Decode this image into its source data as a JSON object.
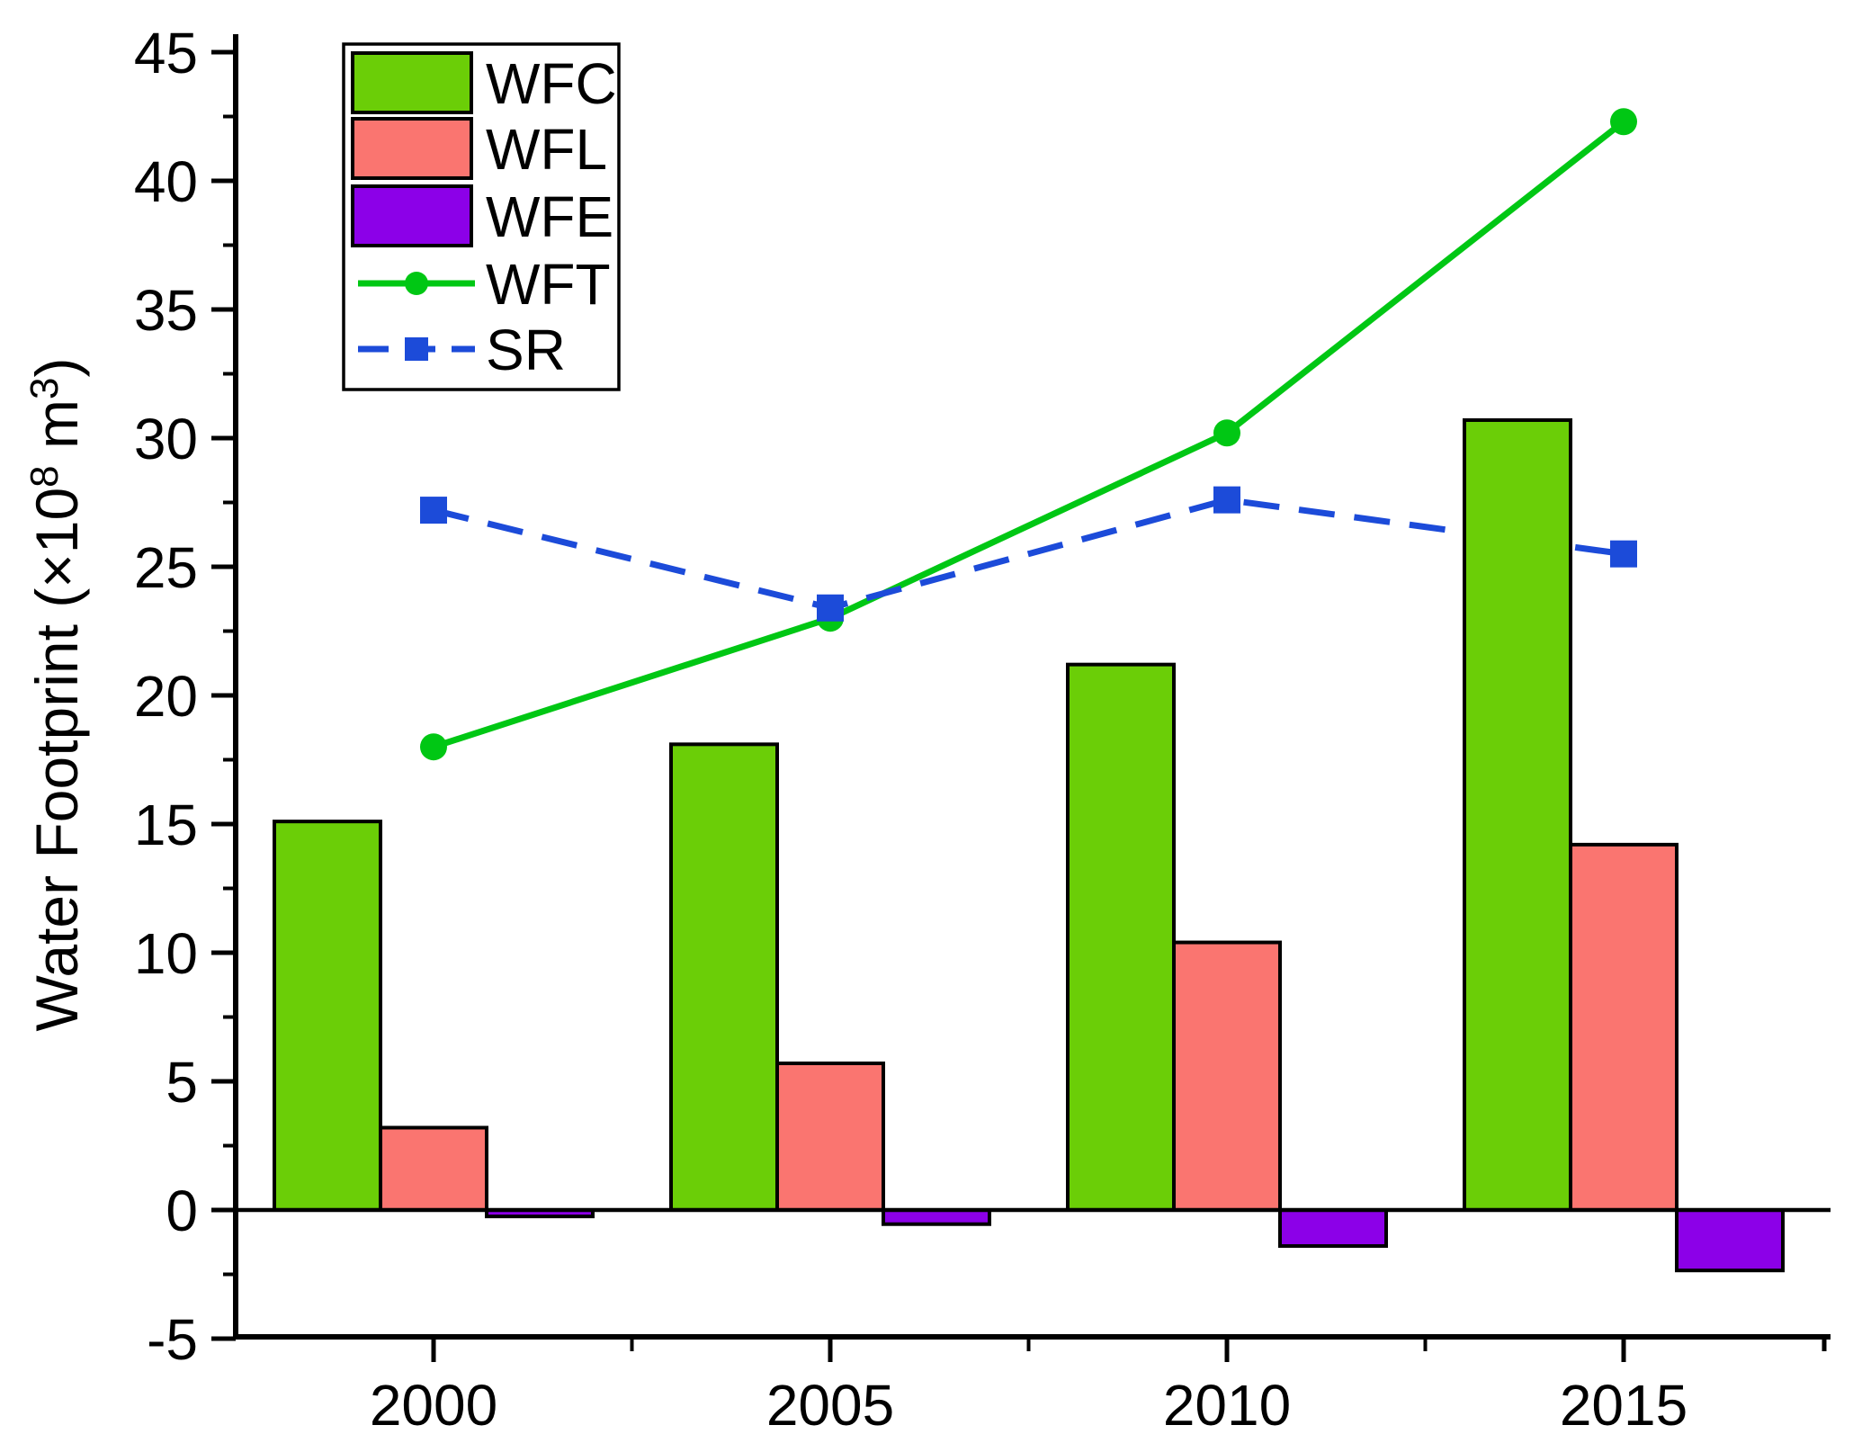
{
  "chart_data": {
    "type": "composite-bar-line",
    "title": "",
    "xlabel": "",
    "ylabel": "Water Footprint (×10⁸ m³)",
    "ylabel_parts": [
      {
        "text": "Water Footprint (×10"
      },
      {
        "text": "8",
        "sup": true
      },
      {
        "text": " m",
        "sup": false
      },
      {
        "text": "3",
        "sup": true
      },
      {
        "text": ")",
        "sup": false
      }
    ],
    "x_categories": [
      "2000",
      "2005",
      "2010",
      "2015"
    ],
    "ylim": [
      -5,
      45
    ],
    "y_tick_labels": [
      "-5",
      "0",
      "5",
      "10",
      "15",
      "20",
      "25",
      "30",
      "35",
      "40",
      "45"
    ],
    "y_tick_values": [
      -5,
      0,
      5,
      10,
      15,
      20,
      25,
      30,
      35,
      40,
      45
    ],
    "y_minor_interval": 2.5,
    "grid": false,
    "legend_position": "top-left",
    "bar_series": [
      {
        "name": "WFC",
        "color": "#6BCE07",
        "values": [
          15.1,
          18.1,
          21.2,
          30.7
        ]
      },
      {
        "name": "WFL",
        "color": "#FA7570",
        "values": [
          3.2,
          5.7,
          10.4,
          14.2
        ]
      },
      {
        "name": "WFE",
        "color": "#8C00E8",
        "values": [
          -0.25,
          -0.55,
          -1.4,
          -2.35
        ]
      }
    ],
    "line_series": [
      {
        "name": "WFT",
        "color": "#00C714",
        "marker": "circle",
        "line_style": "solid",
        "values": [
          18.0,
          23.0,
          30.2,
          42.3
        ]
      },
      {
        "name": "SR",
        "color": "#1C4BD9",
        "marker": "square",
        "line_style": "dashed",
        "values": [
          27.2,
          23.4,
          27.6,
          25.5
        ]
      }
    ],
    "axis_color": "#000000",
    "background_color": "#ffffff"
  }
}
